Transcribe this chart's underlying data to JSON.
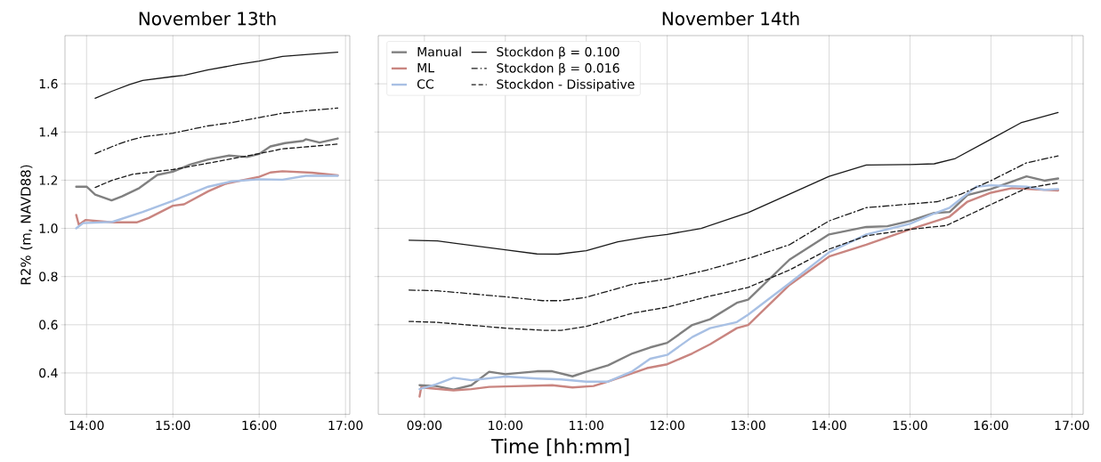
{
  "chart_data": [
    {
      "type": "line",
      "title": "November 13th",
      "ylabel": "R2% (m, NAVD88)",
      "xlim": [
        13.75,
        17.05
      ],
      "ylim": [
        0.23,
        1.8
      ],
      "xticks": [
        {
          "value": 14,
          "label": "14:00"
        },
        {
          "value": 15,
          "label": "15:00"
        },
        {
          "value": 16,
          "label": "16:00"
        },
        {
          "value": 17,
          "label": "17:00"
        }
      ],
      "yticks": [
        {
          "value": 0.4,
          "label": "0.4"
        },
        {
          "value": 0.6,
          "label": "0.6"
        },
        {
          "value": 0.8,
          "label": "0.8"
        },
        {
          "value": 1.0,
          "label": "1.0"
        },
        {
          "value": 1.2,
          "label": "1.2"
        },
        {
          "value": 1.4,
          "label": "1.4"
        },
        {
          "value": 1.6,
          "label": "1.6"
        }
      ],
      "grid": true,
      "legend": false,
      "series": [
        {
          "color": "#808080",
          "x": [
            13.88,
            14.0,
            14.1,
            14.29,
            14.41,
            14.61,
            14.82,
            15.0,
            15.2,
            15.41,
            15.65,
            15.86,
            16.0,
            16.13,
            16.3,
            16.51,
            16.54,
            16.7,
            16.91
          ],
          "values": [
            1.173,
            1.173,
            1.14,
            1.116,
            1.133,
            1.167,
            1.222,
            1.235,
            1.265,
            1.286,
            1.302,
            1.296,
            1.309,
            1.34,
            1.354,
            1.363,
            1.37,
            1.356,
            1.373
          ]
        },
        {
          "color": "#c98580",
          "x": [
            13.88,
            13.91,
            13.99,
            14.3,
            14.58,
            14.72,
            15.0,
            15.13,
            15.41,
            15.61,
            16.0,
            16.13,
            16.27,
            16.61,
            16.91
          ],
          "values": [
            1.056,
            1.015,
            1.035,
            1.025,
            1.025,
            1.043,
            1.094,
            1.1,
            1.154,
            1.185,
            1.214,
            1.232,
            1.237,
            1.231,
            1.22
          ]
        },
        {
          "color": "#a8c0e4",
          "x": [
            13.88,
            13.96,
            14.3,
            14.65,
            15.0,
            15.41,
            15.68,
            16.0,
            16.27,
            16.54,
            16.91
          ],
          "values": [
            1.0,
            1.022,
            1.027,
            1.068,
            1.114,
            1.173,
            1.195,
            1.204,
            1.202,
            1.218,
            1.218
          ]
        },
        {
          "color": "#1a1a1a",
          "line_style": "solid",
          "x": [
            14.1,
            14.3,
            14.5,
            14.65,
            15.0,
            15.13,
            15.4,
            15.75,
            16.0,
            16.27,
            16.6,
            16.91
          ],
          "values": [
            1.54,
            1.57,
            1.597,
            1.614,
            1.63,
            1.635,
            1.657,
            1.68,
            1.694,
            1.714,
            1.723,
            1.731
          ]
        },
        {
          "color": "#1a1a1a",
          "line_style": "dashdot",
          "x": [
            14.1,
            14.3,
            14.45,
            14.65,
            15.0,
            15.4,
            15.7,
            16.0,
            16.27,
            16.6,
            16.91
          ],
          "values": [
            1.31,
            1.34,
            1.36,
            1.38,
            1.395,
            1.425,
            1.44,
            1.46,
            1.478,
            1.49,
            1.499
          ]
        },
        {
          "color": "#1a1a1a",
          "line_style": "dashed",
          "x": [
            14.1,
            14.3,
            14.54,
            15.0,
            15.4,
            15.7,
            16.0,
            16.27,
            16.6,
            16.91
          ],
          "values": [
            1.17,
            1.2,
            1.225,
            1.244,
            1.27,
            1.29,
            1.31,
            1.33,
            1.34,
            1.35
          ]
        }
      ]
    },
    {
      "type": "line",
      "title": "November 14th",
      "xlabel": "Time [hh:mm]",
      "xlim": [
        8.43,
        17.14
      ],
      "ylim": [
        0.23,
        1.8
      ],
      "xticks": [
        {
          "value": 9,
          "label": "09:00"
        },
        {
          "value": 10,
          "label": "10:00"
        },
        {
          "value": 11,
          "label": "11:00"
        },
        {
          "value": 12,
          "label": "12:00"
        },
        {
          "value": 13,
          "label": "13:00"
        },
        {
          "value": 14,
          "label": "14:00"
        },
        {
          "value": 15,
          "label": "15:00"
        },
        {
          "value": 16,
          "label": "16:00"
        },
        {
          "value": 17,
          "label": "17:00"
        }
      ],
      "yticks": [
        {
          "value": 0.4,
          "label": null
        },
        {
          "value": 0.6,
          "label": null
        },
        {
          "value": 0.8,
          "label": null
        },
        {
          "value": 1.0,
          "label": null
        },
        {
          "value": 1.2,
          "label": null
        },
        {
          "value": 1.4,
          "label": null
        },
        {
          "value": 1.6,
          "label": null
        }
      ],
      "tick_labels": "x",
      "grid": true,
      "legend": "top left",
      "series": [
        {
          "name": "Manual",
          "color": "#808080",
          "x": [
            8.94,
            9.14,
            9.36,
            9.58,
            9.8,
            10.0,
            10.39,
            10.58,
            10.83,
            11.0,
            11.27,
            11.57,
            11.79,
            12.0,
            12.31,
            12.53,
            12.86,
            13.0,
            13.51,
            14.0,
            14.46,
            14.72,
            15.0,
            15.3,
            15.49,
            15.71,
            16.0,
            16.44,
            16.66,
            16.83
          ],
          "values": [
            0.349,
            0.346,
            0.331,
            0.349,
            0.405,
            0.395,
            0.407,
            0.407,
            0.386,
            0.405,
            0.432,
            0.481,
            0.506,
            0.525,
            0.599,
            0.623,
            0.691,
            0.704,
            0.87,
            0.975,
            1.006,
            1.009,
            1.031,
            1.064,
            1.068,
            1.138,
            1.163,
            1.216,
            1.198,
            1.207
          ]
        },
        {
          "name": "ML",
          "color": "#c98580",
          "x": [
            8.94,
            8.96,
            9.36,
            9.58,
            9.8,
            10.0,
            10.58,
            10.83,
            11.09,
            11.27,
            11.75,
            12.0,
            12.31,
            12.53,
            12.86,
            13.0,
            13.51,
            14.0,
            14.46,
            14.72,
            15.0,
            15.49,
            15.71,
            16.0,
            16.26,
            16.83
          ],
          "values": [
            0.302,
            0.34,
            0.328,
            0.333,
            0.342,
            0.344,
            0.349,
            0.34,
            0.346,
            0.364,
            0.42,
            0.436,
            0.481,
            0.519,
            0.586,
            0.599,
            0.765,
            0.883,
            0.932,
            0.963,
            0.996,
            1.049,
            1.111,
            1.148,
            1.167,
            1.157
          ]
        },
        {
          "name": "CC",
          "color": "#a8c0e4",
          "x": [
            8.94,
            9.14,
            9.36,
            9.58,
            10.0,
            10.39,
            10.69,
            11.0,
            11.27,
            11.57,
            11.79,
            12.0,
            12.31,
            12.53,
            12.86,
            13.0,
            13.51,
            14.0,
            14.46,
            15.0,
            15.3,
            15.49,
            15.82,
            16.0,
            16.44,
            16.66,
            16.83
          ],
          "values": [
            0.333,
            0.352,
            0.38,
            0.37,
            0.385,
            0.377,
            0.373,
            0.364,
            0.364,
            0.407,
            0.459,
            0.475,
            0.549,
            0.586,
            0.611,
            0.642,
            0.772,
            0.901,
            0.975,
            1.019,
            1.062,
            1.086,
            1.173,
            1.179,
            1.173,
            1.16,
            1.163
          ]
        },
        {
          "name": "Stockdon β = 0.100",
          "color": "#1a1a1a",
          "line_style": "solid",
          "x": [
            8.81,
            9.16,
            10.0,
            10.39,
            10.65,
            11.0,
            11.39,
            11.75,
            12.0,
            12.42,
            12.86,
            13.0,
            13.51,
            14.0,
            14.46,
            15.0,
            15.3,
            15.56,
            16.0,
            16.37,
            16.83
          ],
          "values": [
            0.951,
            0.948,
            0.911,
            0.894,
            0.893,
            0.907,
            0.944,
            0.965,
            0.975,
            1.0,
            1.05,
            1.065,
            1.142,
            1.216,
            1.263,
            1.265,
            1.268,
            1.29,
            1.37,
            1.438,
            1.481
          ]
        },
        {
          "name": "Stockdon β = 0.016",
          "color": "#1a1a1a",
          "line_style": "dashdot",
          "x": [
            8.81,
            9.16,
            10.0,
            10.46,
            10.69,
            11.0,
            11.57,
            12.0,
            12.49,
            13.0,
            13.51,
            14.0,
            14.46,
            15.0,
            15.34,
            15.63,
            16.0,
            16.44,
            16.83
          ],
          "values": [
            0.744,
            0.741,
            0.716,
            0.7,
            0.7,
            0.714,
            0.768,
            0.79,
            0.827,
            0.875,
            0.932,
            1.031,
            1.086,
            1.101,
            1.111,
            1.142,
            1.198,
            1.272,
            1.301
          ]
        },
        {
          "name": "Stockdon - Dissipative",
          "color": "#1a1a1a",
          "line_style": "dashed",
          "x": [
            8.81,
            9.16,
            10.0,
            10.46,
            10.69,
            11.0,
            11.57,
            12.0,
            12.49,
            13.0,
            13.51,
            14.0,
            14.46,
            15.0,
            15.45,
            16.0,
            16.44,
            16.83
          ],
          "values": [
            0.614,
            0.61,
            0.586,
            0.577,
            0.577,
            0.593,
            0.648,
            0.673,
            0.716,
            0.755,
            0.827,
            0.914,
            0.969,
            0.996,
            1.012,
            1.099,
            1.167,
            1.189
          ]
        }
      ]
    }
  ]
}
